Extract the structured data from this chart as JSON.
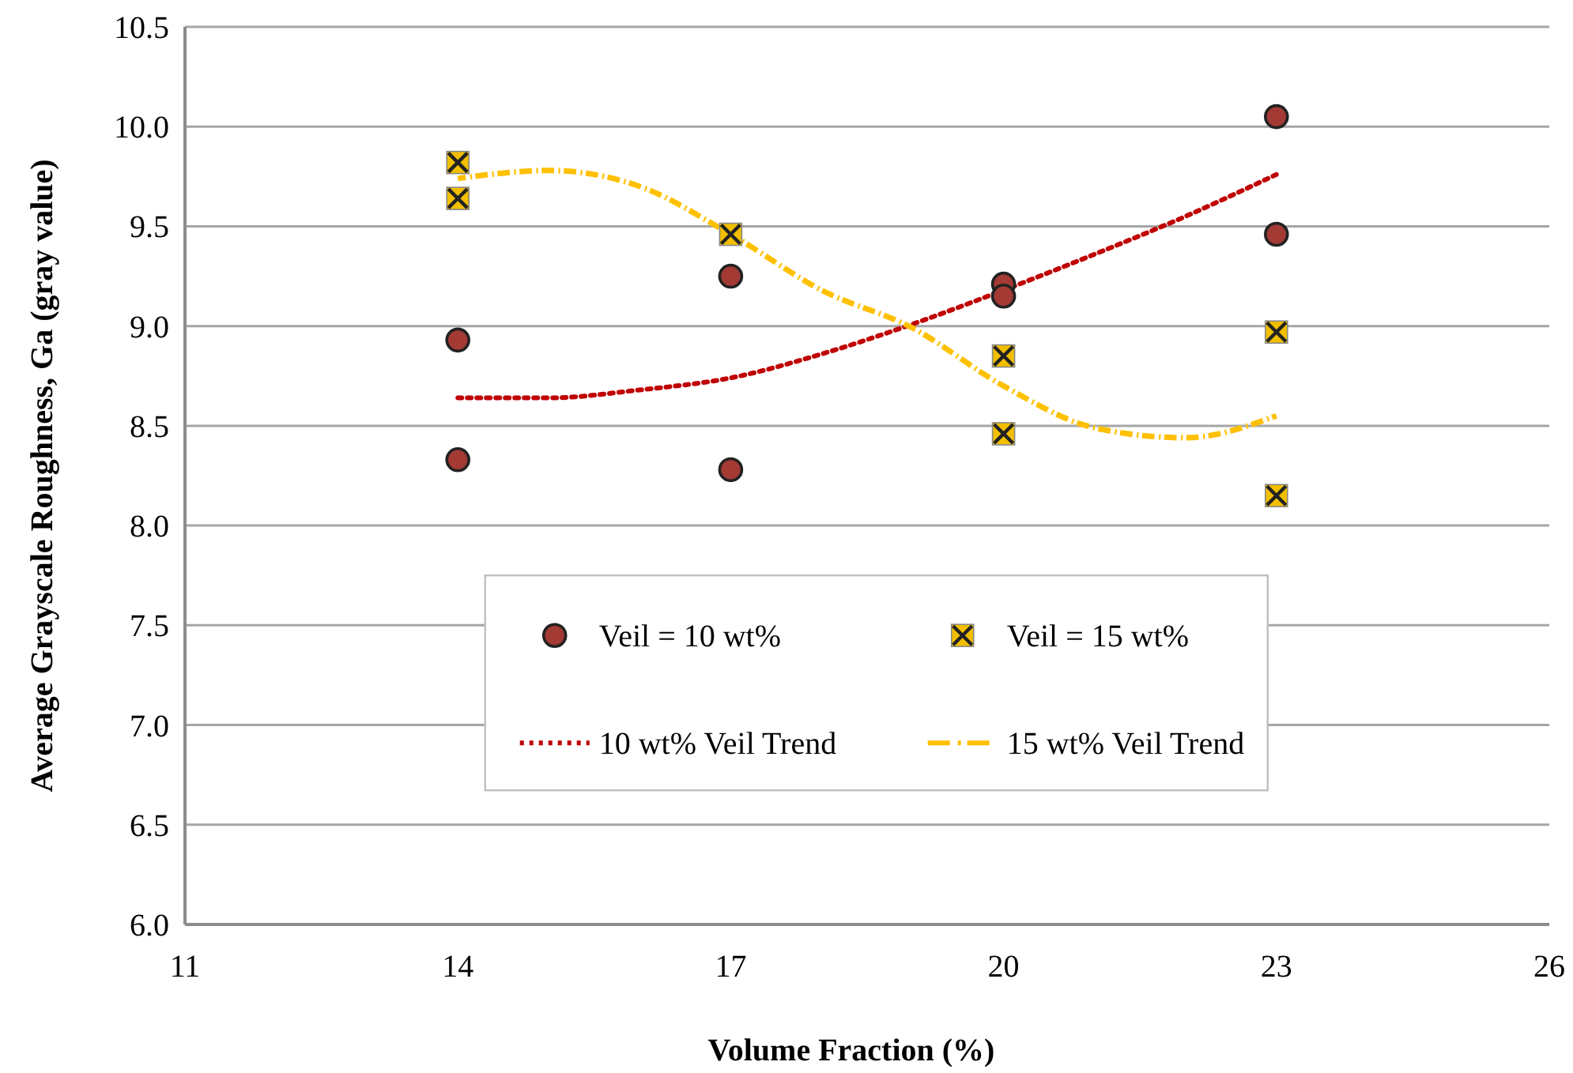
{
  "chart_data": {
    "type": "scatter",
    "xlabel": "Volume Fraction (%)",
    "ylabel": "Average Grayscale Roughness, Ga  (gray value)",
    "xlim": [
      11,
      26
    ],
    "xticks": [
      11,
      14,
      17,
      20,
      23,
      26
    ],
    "ylim": [
      6,
      10.5
    ],
    "yticks": [
      {
        "value": 6,
        "label": "6.0"
      },
      {
        "value": 6.5,
        "label": "6.5"
      },
      {
        "value": 7,
        "label": "7.0"
      },
      {
        "value": 7.5,
        "label": "7.5"
      },
      {
        "value": 8,
        "label": "8.0"
      },
      {
        "value": 8.5,
        "label": "8.5"
      },
      {
        "value": 9,
        "label": "9.0"
      },
      {
        "value": 9.5,
        "label": "9.5"
      },
      {
        "value": 10,
        "label": "10.0"
      },
      {
        "value": 10.5,
        "label": "10.5"
      }
    ],
    "grid": "y",
    "legend": "bottom",
    "series": [
      {
        "name": "Veil = 10 wt%",
        "marker": "circle",
        "color": "#a33a34",
        "x": [
          14,
          14,
          17,
          17,
          20,
          20,
          23,
          23
        ],
        "values": [
          8.93,
          8.33,
          9.25,
          8.28,
          9.21,
          9.15,
          10.05,
          9.46
        ]
      },
      {
        "name": "Veil = 15 wt%",
        "marker": "square",
        "color": "#f2be00",
        "x": [
          14,
          14,
          17,
          20,
          20,
          23,
          23
        ],
        "values": [
          9.82,
          9.64,
          9.46,
          8.85,
          8.46,
          8.97,
          8.15
        ]
      },
      {
        "name": "10 wt% Veil Trend",
        "type": "line",
        "line_style": "dotted",
        "color": "#c00000",
        "x": [
          14,
          15,
          16,
          17,
          18,
          19,
          20,
          21,
          22,
          23
        ],
        "values": [
          8.64,
          8.64,
          8.68,
          8.74,
          8.86,
          9.01,
          9.18,
          9.36,
          9.55,
          9.76
        ]
      },
      {
        "name": "15 wt% Veil Trend",
        "type": "line",
        "line_style": "dashed",
        "color": "#ffc000",
        "x": [
          14,
          15,
          16,
          17,
          18,
          19,
          20,
          21,
          22,
          23
        ],
        "values": [
          9.74,
          9.78,
          9.7,
          9.46,
          9.18,
          8.99,
          8.7,
          8.49,
          8.44,
          8.55
        ]
      }
    ]
  }
}
